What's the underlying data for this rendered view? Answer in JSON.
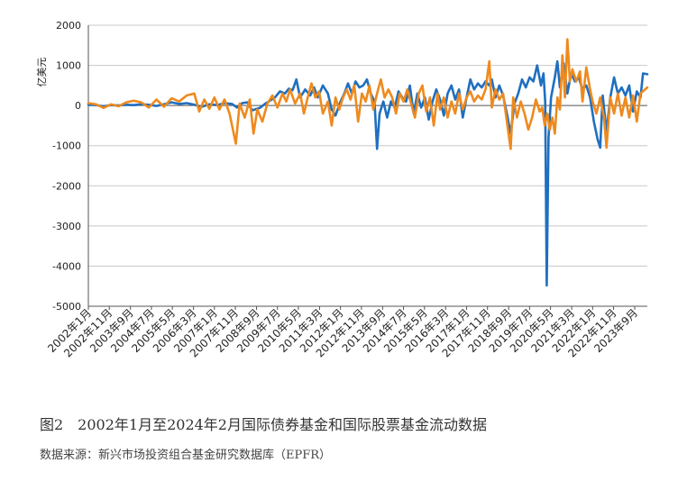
{
  "figure": {
    "caption": "图2　2002年1月至2024年2月国际债券基金和国际股票基金流动数据",
    "source": "数据来源：新兴市场投资组合基金研究数据库（EPFR）"
  },
  "colors": {
    "bond": "#1f6fc0",
    "equity": "#ee8a1e",
    "grid": "#c8c8c8"
  },
  "chart_data": {
    "type": "line",
    "ylabel": "亿美元",
    "ylim": [
      -5000,
      2000
    ],
    "yticks": [
      2000,
      1000,
      0,
      -1000,
      -2000,
      -3000,
      -4000,
      -5000
    ],
    "xlim": [
      2002.0,
      2024.17
    ],
    "grid": true,
    "x_tick_labels": [
      "2002年1月",
      "2002年11月",
      "2003年9月",
      "2004年7月",
      "2005年5月",
      "2006年3月",
      "2007年1月",
      "2007年11月",
      "2008年9月",
      "2009年7月",
      "2010年5月",
      "2011年3月",
      "2012年1月",
      "2012年11月",
      "2013年9月",
      "2014年7月",
      "2015年5月",
      "2016年3月",
      "2017年1月",
      "2017年11月",
      "2018年9月",
      "2019年7月",
      "2020年5月",
      "2021年3月",
      "2022年1月",
      "2022年11月",
      "2023年9月"
    ],
    "x_tick_positions": [
      2002.0,
      2002.83,
      2003.67,
      2004.5,
      2005.33,
      2006.17,
      2007.0,
      2007.83,
      2008.67,
      2009.5,
      2010.33,
      2011.17,
      2012.0,
      2012.83,
      2013.67,
      2014.5,
      2015.33,
      2016.17,
      2017.0,
      2017.83,
      2018.67,
      2019.5,
      2020.33,
      2021.17,
      2022.0,
      2022.83,
      2023.67
    ],
    "series": [
      {
        "color_key": "bond",
        "points": [
          [
            2002.0,
            20
          ],
          [
            2002.3,
            10
          ],
          [
            2002.6,
            -20
          ],
          [
            2002.9,
            10
          ],
          [
            2003.2,
            0
          ],
          [
            2003.5,
            20
          ],
          [
            2003.8,
            10
          ],
          [
            2004.1,
            30
          ],
          [
            2004.4,
            20
          ],
          [
            2004.7,
            -10
          ],
          [
            2005.0,
            30
          ],
          [
            2005.3,
            80
          ],
          [
            2005.6,
            40
          ],
          [
            2005.9,
            60
          ],
          [
            2006.2,
            20
          ],
          [
            2006.5,
            -30
          ],
          [
            2006.8,
            30
          ],
          [
            2007.1,
            10
          ],
          [
            2007.4,
            60
          ],
          [
            2007.7,
            40
          ],
          [
            2007.9,
            -50
          ],
          [
            2008.1,
            60
          ],
          [
            2008.3,
            80
          ],
          [
            2008.5,
            -120
          ],
          [
            2008.8,
            -60
          ],
          [
            2009.0,
            40
          ],
          [
            2009.2,
            120
          ],
          [
            2009.4,
            200
          ],
          [
            2009.6,
            350
          ],
          [
            2009.8,
            300
          ],
          [
            2009.95,
            420
          ],
          [
            2010.1,
            380
          ],
          [
            2010.25,
            650
          ],
          [
            2010.4,
            200
          ],
          [
            2010.6,
            400
          ],
          [
            2010.8,
            250
          ],
          [
            2010.95,
            450
          ],
          [
            2011.1,
            200
          ],
          [
            2011.3,
            500
          ],
          [
            2011.5,
            300
          ],
          [
            2011.65,
            -100
          ],
          [
            2011.8,
            -250
          ],
          [
            2012.0,
            100
          ],
          [
            2012.15,
            300
          ],
          [
            2012.3,
            550
          ],
          [
            2012.45,
            300
          ],
          [
            2012.6,
            600
          ],
          [
            2012.75,
            450
          ],
          [
            2012.9,
            500
          ],
          [
            2013.05,
            650
          ],
          [
            2013.2,
            300
          ],
          [
            2013.35,
            100
          ],
          [
            2013.45,
            -1080
          ],
          [
            2013.55,
            -200
          ],
          [
            2013.7,
            100
          ],
          [
            2013.85,
            -300
          ],
          [
            2014.0,
            100
          ],
          [
            2014.15,
            -50
          ],
          [
            2014.3,
            350
          ],
          [
            2014.45,
            200
          ],
          [
            2014.6,
            100
          ],
          [
            2014.75,
            500
          ],
          [
            2014.9,
            -200
          ],
          [
            2015.05,
            300
          ],
          [
            2015.2,
            -50
          ],
          [
            2015.35,
            200
          ],
          [
            2015.5,
            -350
          ],
          [
            2015.65,
            100
          ],
          [
            2015.8,
            400
          ],
          [
            2015.95,
            150
          ],
          [
            2016.1,
            -250
          ],
          [
            2016.25,
            300
          ],
          [
            2016.4,
            500
          ],
          [
            2016.55,
            150
          ],
          [
            2016.7,
            400
          ],
          [
            2016.85,
            -300
          ],
          [
            2017.0,
            200
          ],
          [
            2017.15,
            650
          ],
          [
            2017.3,
            400
          ],
          [
            2017.45,
            550
          ],
          [
            2017.6,
            450
          ],
          [
            2017.75,
            600
          ],
          [
            2017.9,
            500
          ],
          [
            2018.0,
            650
          ],
          [
            2018.15,
            200
          ],
          [
            2018.3,
            500
          ],
          [
            2018.45,
            250
          ],
          [
            2018.6,
            -200
          ],
          [
            2018.75,
            -700
          ],
          [
            2018.9,
            50
          ],
          [
            2019.05,
            300
          ],
          [
            2019.2,
            650
          ],
          [
            2019.35,
            450
          ],
          [
            2019.5,
            700
          ],
          [
            2019.65,
            600
          ],
          [
            2019.8,
            1000
          ],
          [
            2019.95,
            500
          ],
          [
            2020.05,
            800
          ],
          [
            2020.12,
            100
          ],
          [
            2020.18,
            -4480
          ],
          [
            2020.25,
            -800
          ],
          [
            2020.35,
            200
          ],
          [
            2020.5,
            700
          ],
          [
            2020.6,
            1100
          ],
          [
            2020.7,
            450
          ],
          [
            2020.85,
            1050
          ],
          [
            2021.0,
            300
          ],
          [
            2021.15,
            800
          ],
          [
            2021.3,
            600
          ],
          [
            2021.45,
            700
          ],
          [
            2021.6,
            400
          ],
          [
            2021.75,
            500
          ],
          [
            2021.9,
            200
          ],
          [
            2022.05,
            -400
          ],
          [
            2022.2,
            -850
          ],
          [
            2022.3,
            -1050
          ],
          [
            2022.4,
            250
          ],
          [
            2022.55,
            -650
          ],
          [
            2022.7,
            200
          ],
          [
            2022.85,
            700
          ],
          [
            2023.0,
            300
          ],
          [
            2023.15,
            450
          ],
          [
            2023.3,
            250
          ],
          [
            2023.45,
            500
          ],
          [
            2023.6,
            -150
          ],
          [
            2023.75,
            350
          ],
          [
            2023.9,
            200
          ],
          [
            2024.0,
            800
          ],
          [
            2024.17,
            780
          ]
        ]
      },
      {
        "color_key": "equity",
        "points": [
          [
            2002.0,
            60
          ],
          [
            2002.3,
            30
          ],
          [
            2002.6,
            -60
          ],
          [
            2002.9,
            30
          ],
          [
            2003.2,
            -20
          ],
          [
            2003.5,
            80
          ],
          [
            2003.8,
            120
          ],
          [
            2004.1,
            80
          ],
          [
            2004.4,
            -50
          ],
          [
            2004.7,
            150
          ],
          [
            2005.0,
            -30
          ],
          [
            2005.3,
            180
          ],
          [
            2005.6,
            100
          ],
          [
            2005.9,
            250
          ],
          [
            2006.2,
            300
          ],
          [
            2006.4,
            -150
          ],
          [
            2006.6,
            150
          ],
          [
            2006.8,
            -80
          ],
          [
            2007.0,
            200
          ],
          [
            2007.2,
            -100
          ],
          [
            2007.4,
            150
          ],
          [
            2007.6,
            -200
          ],
          [
            2007.85,
            -950
          ],
          [
            2008.0,
            50
          ],
          [
            2008.2,
            -300
          ],
          [
            2008.4,
            150
          ],
          [
            2008.55,
            -700
          ],
          [
            2008.7,
            -100
          ],
          [
            2008.9,
            -400
          ],
          [
            2009.1,
            50
          ],
          [
            2009.3,
            250
          ],
          [
            2009.5,
            -50
          ],
          [
            2009.7,
            300
          ],
          [
            2009.85,
            100
          ],
          [
            2010.0,
            400
          ],
          [
            2010.2,
            50
          ],
          [
            2010.4,
            300
          ],
          [
            2010.55,
            -200
          ],
          [
            2010.7,
            200
          ],
          [
            2010.85,
            550
          ],
          [
            2011.0,
            200
          ],
          [
            2011.15,
            350
          ],
          [
            2011.3,
            -200
          ],
          [
            2011.5,
            100
          ],
          [
            2011.65,
            -500
          ],
          [
            2011.8,
            200
          ],
          [
            2011.95,
            -100
          ],
          [
            2012.1,
            200
          ],
          [
            2012.25,
            400
          ],
          [
            2012.4,
            150
          ],
          [
            2012.55,
            500
          ],
          [
            2012.7,
            -400
          ],
          [
            2012.85,
            300
          ],
          [
            2013.0,
            100
          ],
          [
            2013.15,
            500
          ],
          [
            2013.3,
            -100
          ],
          [
            2013.45,
            300
          ],
          [
            2013.6,
            650
          ],
          [
            2013.75,
            200
          ],
          [
            2013.9,
            400
          ],
          [
            2014.05,
            200
          ],
          [
            2014.2,
            -200
          ],
          [
            2014.35,
            300
          ],
          [
            2014.5,
            100
          ],
          [
            2014.65,
            400
          ],
          [
            2014.8,
            50
          ],
          [
            2014.95,
            -300
          ],
          [
            2015.1,
            300
          ],
          [
            2015.25,
            500
          ],
          [
            2015.4,
            -150
          ],
          [
            2015.55,
            200
          ],
          [
            2015.7,
            -500
          ],
          [
            2015.85,
            300
          ],
          [
            2015.95,
            -100
          ],
          [
            2016.1,
            200
          ],
          [
            2016.25,
            -300
          ],
          [
            2016.4,
            100
          ],
          [
            2016.55,
            -200
          ],
          [
            2016.7,
            300
          ],
          [
            2016.85,
            -100
          ],
          [
            2017.0,
            200
          ],
          [
            2017.15,
            350
          ],
          [
            2017.3,
            100
          ],
          [
            2017.45,
            250
          ],
          [
            2017.6,
            150
          ],
          [
            2017.75,
            400
          ],
          [
            2017.9,
            1100
          ],
          [
            2018.0,
            -50
          ],
          [
            2018.15,
            400
          ],
          [
            2018.3,
            150
          ],
          [
            2018.45,
            300
          ],
          [
            2018.6,
            -400
          ],
          [
            2018.75,
            -1080
          ],
          [
            2018.85,
            200
          ],
          [
            2019.0,
            -300
          ],
          [
            2019.15,
            100
          ],
          [
            2019.3,
            -200
          ],
          [
            2019.45,
            -600
          ],
          [
            2019.6,
            -300
          ],
          [
            2019.75,
            150
          ],
          [
            2019.9,
            -150
          ],
          [
            2020.0,
            -50
          ],
          [
            2020.1,
            -500
          ],
          [
            2020.2,
            -200
          ],
          [
            2020.3,
            -600
          ],
          [
            2020.4,
            -300
          ],
          [
            2020.5,
            -700
          ],
          [
            2020.6,
            200
          ],
          [
            2020.7,
            -100
          ],
          [
            2020.8,
            1250
          ],
          [
            2020.9,
            200
          ],
          [
            2021.0,
            1650
          ],
          [
            2021.1,
            600
          ],
          [
            2021.2,
            900
          ],
          [
            2021.35,
            600
          ],
          [
            2021.5,
            850
          ],
          [
            2021.6,
            100
          ],
          [
            2021.75,
            950
          ],
          [
            2021.9,
            400
          ],
          [
            2022.0,
            100
          ],
          [
            2022.15,
            -200
          ],
          [
            2022.3,
            200
          ],
          [
            2022.45,
            -300
          ],
          [
            2022.55,
            -1050
          ],
          [
            2022.7,
            200
          ],
          [
            2022.85,
            -200
          ],
          [
            2023.0,
            300
          ],
          [
            2023.15,
            -250
          ],
          [
            2023.3,
            200
          ],
          [
            2023.45,
            -300
          ],
          [
            2023.6,
            250
          ],
          [
            2023.75,
            -400
          ],
          [
            2023.9,
            300
          ],
          [
            2024.17,
            450
          ]
        ]
      }
    ]
  }
}
